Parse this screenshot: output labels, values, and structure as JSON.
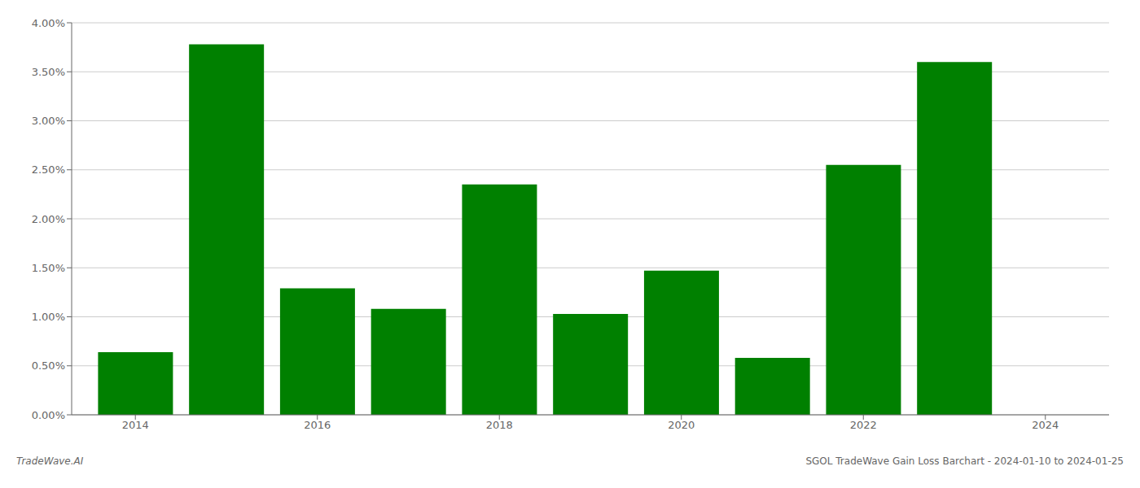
{
  "chart_data": {
    "type": "bar",
    "x": [
      2014,
      2015,
      2016,
      2017,
      2018,
      2019,
      2020,
      2021,
      2022,
      2023
    ],
    "values": [
      0.0064,
      0.0378,
      0.0129,
      0.0108,
      0.0235,
      0.0103,
      0.0147,
      0.0058,
      0.0255,
      0.036
    ],
    "color": "#008000",
    "xlim": [
      2013.3,
      2024.7
    ],
    "xticks": [
      2014,
      2016,
      2018,
      2020,
      2022,
      2024
    ],
    "ylim": [
      0,
      0.04
    ],
    "yticks": [
      {
        "value": 0,
        "label": "0.00%"
      },
      {
        "value": 0.005,
        "label": "0.50%"
      },
      {
        "value": 0.01,
        "label": "1.00%"
      },
      {
        "value": 0.015,
        "label": "1.50%"
      },
      {
        "value": 0.02,
        "label": "2.00%"
      },
      {
        "value": 0.025,
        "label": "2.50%"
      },
      {
        "value": 0.03,
        "label": "3.00%"
      },
      {
        "value": 0.035,
        "label": "3.50%"
      },
      {
        "value": 0.04,
        "label": "4.00%"
      }
    ],
    "grid": true,
    "annotations": [
      "TradeWave.AI",
      "SGOL TradeWave Gain Loss Barchart - 2024-01-10 to 2024-01-25"
    ]
  }
}
